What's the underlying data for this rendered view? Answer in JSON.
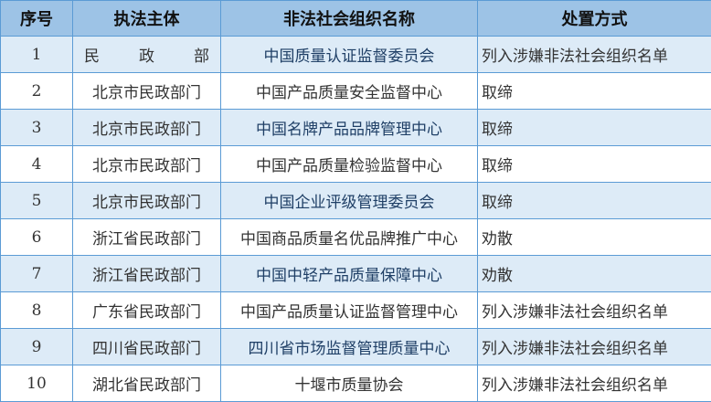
{
  "headers": [
    "序号",
    "执法主体",
    "非法社会组织名称",
    "处置方式"
  ],
  "rows": [
    [
      "1",
      "民政部",
      "中国质量认证监督委员会",
      "列入涉嫌非法社会组织名单"
    ],
    [
      "2",
      "北京市民政部门",
      "中国产品质量安全监督中心",
      "取缔"
    ],
    [
      "3",
      "北京市民政部门",
      "中国名牌产品品牌管理中心",
      "取缔"
    ],
    [
      "4",
      "北京市民政部门",
      "中国产品质量检验监督中心",
      "取缔"
    ],
    [
      "5",
      "北京市民政部门",
      "中国企业评级管理委员会",
      "取缔"
    ],
    [
      "6",
      "浙江省民政部门",
      "中国商品质量名优品牌推广中心",
      "劝散"
    ],
    [
      "7",
      "浙江省民政部门",
      "中国中轻产品质量保障中心",
      "劝散"
    ],
    [
      "8",
      "广东省民政部门",
      "中国产品质量认证监督管理中心",
      "列入涉嫌非法社会组织名单"
    ],
    [
      "9",
      "四川省民政部门",
      "四川省市场监督管理质量中心",
      "列入涉嫌非法社会组织名单"
    ],
    [
      "10",
      "湖北省民政部门",
      "十堰市质量协会",
      "列入涉嫌非法社会组织名单"
    ]
  ],
  "colors": {
    "header_bg": "#9dc3e6",
    "alt_row_bg": "#ddebf7",
    "border": "#5b9bd5"
  }
}
